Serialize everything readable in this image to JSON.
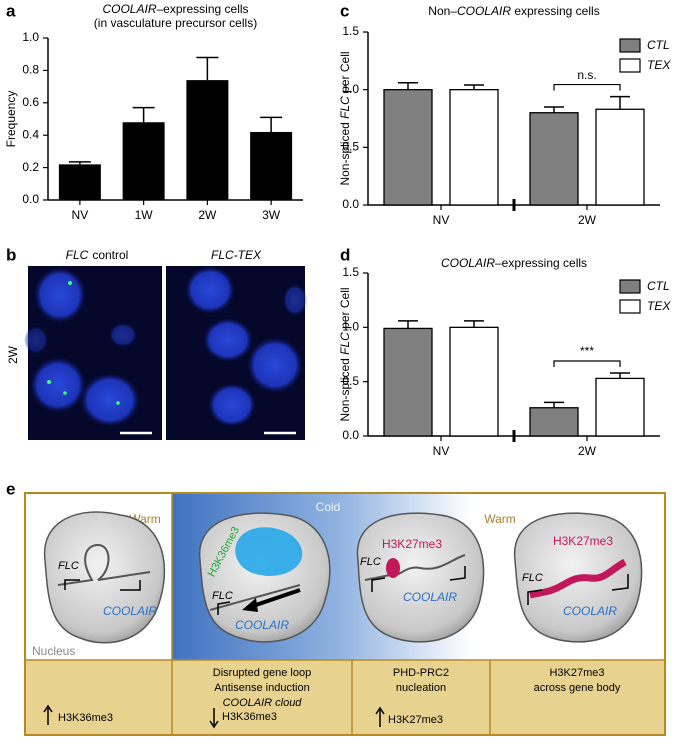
{
  "chart_data": [
    {
      "type": "bar",
      "panel": "a",
      "title": [
        {
          "text": "COOLAIR",
          "italic": true
        },
        {
          "text": "–expressing cells"
        }
      ],
      "subtitle": "(in vasculature precursor cells)",
      "ylabel": [
        {
          "text": "Frequency"
        }
      ],
      "categories": [
        "NV",
        "1W",
        "2W",
        "3W"
      ],
      "values": [
        0.22,
        0.48,
        0.74,
        0.42
      ],
      "errors": [
        0.015,
        0.09,
        0.14,
        0.09
      ],
      "color": "#000000",
      "ylim": [
        0,
        1
      ],
      "yticks": [
        {
          "value": 0,
          "label": "0.0"
        },
        0.2,
        0.4,
        0.6,
        0.8,
        {
          "value": 1,
          "label": "1.0"
        }
      ]
    },
    {
      "type": "grouped-bar",
      "panel": "c",
      "title": [
        {
          "text": "Non–"
        },
        {
          "text": "COOLAIR",
          "italic": true
        },
        {
          "text": " expressing cells"
        }
      ],
      "ylabel": [
        {
          "text": "Non-spliced "
        },
        {
          "text": "FLC",
          "italic": true
        },
        {
          "text": " per Cell"
        }
      ],
      "categories": [
        "NV",
        "2W"
      ],
      "series": [
        {
          "name": "CTL",
          "color": "#808080",
          "values": [
            1.0,
            0.8
          ],
          "errors": [
            0.06,
            0.05
          ]
        },
        {
          "name": "TEX",
          "color": "#ffffff",
          "values": [
            1.0,
            0.83
          ],
          "errors": [
            0.04,
            0.11
          ]
        }
      ],
      "annotation": "n.s.",
      "axis_break": true,
      "ylim": [
        0,
        1.5
      ],
      "yticks": [
        {
          "value": 0,
          "label": "0.0"
        },
        0.5,
        {
          "value": 1,
          "label": "1.0"
        },
        1.5
      ]
    },
    {
      "type": "grouped-bar",
      "panel": "d",
      "title": [
        {
          "text": "COOLAIR",
          "italic": true
        },
        {
          "text": "–expressing cells"
        }
      ],
      "ylabel": [
        {
          "text": "Non-spliced "
        },
        {
          "text": "FLC",
          "italic": true
        },
        {
          "text": " per Cell"
        }
      ],
      "categories": [
        "NV",
        "2W"
      ],
      "series": [
        {
          "name": "CTL",
          "color": "#808080",
          "values": [
            0.99,
            0.26
          ],
          "errors": [
            0.07,
            0.05
          ]
        },
        {
          "name": "TEX",
          "color": "#ffffff",
          "values": [
            1.0,
            0.53
          ],
          "errors": [
            0.06,
            0.05
          ]
        }
      ],
      "annotation": "***",
      "axis_break": true,
      "ylim": [
        0,
        1.5
      ],
      "yticks": [
        {
          "value": 0,
          "label": "0.0"
        },
        0.5,
        {
          "value": 1,
          "label": "1.0"
        },
        1.5
      ]
    }
  ],
  "micrographs": {
    "panel": "b",
    "row": "2W",
    "left": {
      "gene": "FLC",
      "text": "control"
    },
    "right": {
      "gene": "FLC-TEX"
    }
  },
  "diagram": {
    "panel": "e",
    "phases": [
      "Warm",
      "Cold",
      "Warm"
    ],
    "nucleus": "Nucleus",
    "cells": [
      {
        "gene": "FLC",
        "antisense": "COOLAIR"
      },
      {
        "mark": "H3K36me3",
        "gene": "FLC",
        "antisense": "COOLAIR"
      },
      {
        "mark": "H3K27me3",
        "gene": "FLC",
        "antisense": "COOLAIR"
      },
      {
        "mark": "H3K27me3",
        "gene": "FLC",
        "antisense": "COOLAIR"
      }
    ],
    "notes": [
      [
        "H3K36me3"
      ],
      [
        "Disrupted gene loop",
        "Antisense induction",
        "COOLAIR cloud",
        "H3K36me3"
      ],
      [
        "PHD-PRC2",
        "nucleation",
        "H3K27me3"
      ],
      [
        "H3K27me3",
        "across gene body"
      ]
    ]
  }
}
